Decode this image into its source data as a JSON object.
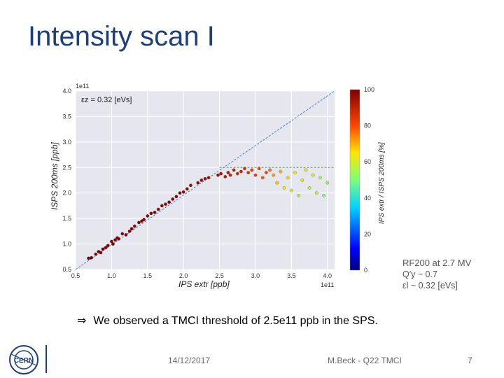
{
  "slide": {
    "title": "Intensity scan I",
    "bullet": "We observed a TMCI threshold of 2.5e11 ppb in the SPS.",
    "bullet_symbol": "⇒",
    "date": "14/12/2017",
    "author": "M.Beck - Q22 TMCI",
    "page": "7",
    "params": [
      "RF200 at 2.7 MV",
      "Q′y ~ 0.7",
      "εl ~ 0.32 [eVs]"
    ]
  },
  "colors": {
    "title": "#1f3f7a",
    "plot_bg": "#e6e7ee",
    "diagonal": "#4a79c8",
    "threshold": "#3aa55a"
  },
  "chart_data": {
    "type": "scatter",
    "annotation": "εz = 0.32 [eVs]",
    "xlabel": "IPS extr [ppb]",
    "ylabel": "ISPS 200ms [ppb]",
    "x_exponent": "1e11",
    "y_exponent": "1e11",
    "xlim": [
      0.5,
      4.1
    ],
    "ylim": [
      0.5,
      4.0
    ],
    "x_ticks": [
      "0.5",
      "1.0",
      "1.5",
      "2.0",
      "2.5",
      "3.0",
      "3.5",
      "4.0"
    ],
    "y_ticks": [
      "0.5",
      "1.0",
      "1.5",
      "2.0",
      "2.5",
      "3.0",
      "3.5",
      "4.0"
    ],
    "x_tick_values": [
      0.5,
      1.0,
      1.5,
      2.0,
      2.5,
      3.0,
      3.5,
      4.0
    ],
    "y_tick_values": [
      0.5,
      1.0,
      1.5,
      2.0,
      2.5,
      3.0,
      3.5,
      4.0
    ],
    "grid": true,
    "reference_lines": [
      {
        "kind": "diagonal",
        "x": [
          0.5,
          4.1
        ],
        "y": [
          0.5,
          4.1
        ]
      },
      {
        "kind": "threshold",
        "x": [
          2.5,
          4.1
        ],
        "y": [
          2.5,
          2.5
        ]
      }
    ],
    "colorbar": {
      "label": "IPS extr / ISPS 200ms [%]",
      "range": [
        0,
        100
      ],
      "ticks": [
        "0",
        "20",
        "40",
        "60",
        "80",
        "100"
      ],
      "tick_values": [
        0,
        20,
        40,
        60,
        80,
        100
      ]
    },
    "points": [
      [
        0.68,
        0.72,
        100
      ],
      [
        0.72,
        0.73,
        100
      ],
      [
        0.78,
        0.8,
        99
      ],
      [
        0.82,
        0.85,
        100
      ],
      [
        0.85,
        0.83,
        99
      ],
      [
        0.88,
        0.9,
        100
      ],
      [
        0.92,
        0.93,
        99
      ],
      [
        0.95,
        0.97,
        100
      ],
      [
        1.0,
        1.05,
        99
      ],
      [
        1.02,
        1.0,
        100
      ],
      [
        1.05,
        1.08,
        99
      ],
      [
        1.08,
        1.12,
        100
      ],
      [
        1.1,
        1.1,
        98
      ],
      [
        1.15,
        1.2,
        99
      ],
      [
        1.2,
        1.18,
        100
      ],
      [
        1.25,
        1.25,
        99
      ],
      [
        1.28,
        1.3,
        100
      ],
      [
        1.32,
        1.35,
        98
      ],
      [
        1.38,
        1.42,
        99
      ],
      [
        1.42,
        1.45,
        100
      ],
      [
        1.45,
        1.48,
        99
      ],
      [
        1.5,
        1.55,
        98
      ],
      [
        1.55,
        1.6,
        99
      ],
      [
        1.6,
        1.62,
        100
      ],
      [
        1.65,
        1.68,
        98
      ],
      [
        1.7,
        1.75,
        99
      ],
      [
        1.75,
        1.78,
        98
      ],
      [
        1.8,
        1.82,
        99
      ],
      [
        1.85,
        1.88,
        98
      ],
      [
        1.9,
        1.93,
        99
      ],
      [
        1.95,
        2.0,
        98
      ],
      [
        2.0,
        2.02,
        97
      ],
      [
        2.05,
        2.08,
        98
      ],
      [
        2.1,
        2.15,
        97
      ],
      [
        2.2,
        2.2,
        97
      ],
      [
        2.25,
        2.25,
        96
      ],
      [
        2.3,
        2.28,
        96
      ],
      [
        2.35,
        2.3,
        95
      ],
      [
        2.48,
        2.35,
        95
      ],
      [
        2.52,
        2.38,
        94
      ],
      [
        2.58,
        2.32,
        92
      ],
      [
        2.62,
        2.4,
        93
      ],
      [
        2.65,
        2.35,
        90
      ],
      [
        2.7,
        2.45,
        91
      ],
      [
        2.75,
        2.38,
        88
      ],
      [
        2.8,
        2.42,
        89
      ],
      [
        2.85,
        2.48,
        86
      ],
      [
        2.9,
        2.4,
        85
      ],
      [
        2.95,
        2.45,
        84
      ],
      [
        3.0,
        2.35,
        82
      ],
      [
        3.05,
        2.48,
        82
      ],
      [
        3.1,
        2.3,
        78
      ],
      [
        3.15,
        2.4,
        80
      ],
      [
        3.2,
        2.45,
        76
      ],
      [
        3.25,
        2.35,
        72
      ],
      [
        3.3,
        2.2,
        68
      ],
      [
        3.35,
        2.42,
        70
      ],
      [
        3.4,
        2.1,
        64
      ],
      [
        3.45,
        2.3,
        66
      ],
      [
        3.5,
        2.05,
        62
      ],
      [
        3.55,
        2.4,
        63
      ],
      [
        3.6,
        1.95,
        58
      ],
      [
        3.65,
        2.25,
        60
      ],
      [
        3.7,
        2.45,
        62
      ],
      [
        3.75,
        2.1,
        56
      ],
      [
        3.8,
        2.35,
        58
      ],
      [
        3.85,
        2.0,
        55
      ],
      [
        3.9,
        2.3,
        55
      ],
      [
        3.95,
        1.95,
        52
      ],
      [
        4.0,
        2.2,
        53
      ]
    ]
  }
}
